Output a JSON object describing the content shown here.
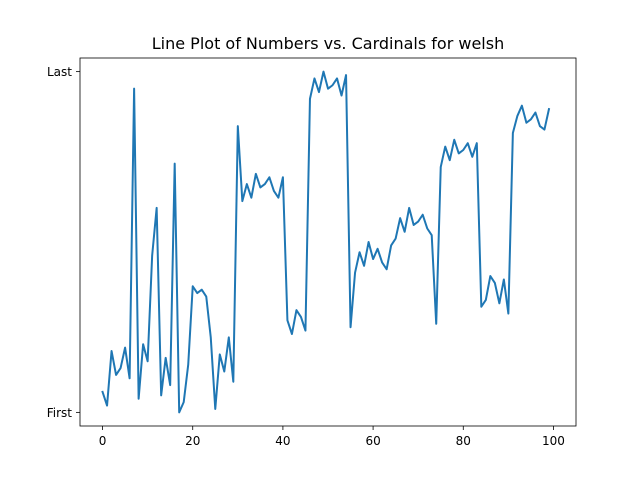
{
  "chart_data": {
    "type": "line",
    "title": "Line Plot of Numbers vs. Cardinals for welsh",
    "xlabel": "",
    "ylabel": "",
    "xlim": [
      -5,
      105
    ],
    "ylim": [
      -0.04,
      1.04
    ],
    "x_ticks": [
      0,
      20,
      40,
      60,
      80,
      100
    ],
    "y_ticks": [
      {
        "value": 0,
        "label": "First"
      },
      {
        "value": 1,
        "label": "Last"
      }
    ],
    "grid": false,
    "legend": "none",
    "line_color": "#1f77b4",
    "series": [
      {
        "x": [
          0,
          1,
          2,
          3,
          4,
          5,
          6,
          7,
          8,
          9,
          10,
          11,
          12,
          13,
          14,
          15,
          16,
          17,
          18,
          19,
          20,
          21,
          22,
          23,
          24,
          25,
          26,
          27,
          28,
          29,
          30,
          31,
          32,
          33,
          34,
          35,
          36,
          37,
          38,
          39,
          40,
          41,
          42,
          43,
          44,
          45,
          46,
          47,
          48,
          49,
          50,
          51,
          52,
          53,
          54,
          55,
          56,
          57,
          58,
          59,
          60,
          61,
          62,
          63,
          64,
          65,
          66,
          67,
          68,
          69,
          70,
          71,
          72,
          73,
          74,
          75,
          76,
          77,
          78,
          79,
          80,
          81,
          82,
          83,
          84,
          85,
          86,
          87,
          88,
          89,
          90,
          91,
          92,
          93,
          94,
          95,
          96,
          97,
          98,
          99
        ],
        "values": [
          0.06,
          0.02,
          0.18,
          0.11,
          0.13,
          0.19,
          0.1,
          0.95,
          0.04,
          0.2,
          0.15,
          0.46,
          0.6,
          0.05,
          0.16,
          0.08,
          0.73,
          0.0,
          0.03,
          0.14,
          0.37,
          0.35,
          0.36,
          0.34,
          0.22,
          0.01,
          0.17,
          0.12,
          0.22,
          0.09,
          0.84,
          0.62,
          0.67,
          0.63,
          0.7,
          0.66,
          0.67,
          0.69,
          0.65,
          0.63,
          0.69,
          0.27,
          0.23,
          0.3,
          0.28,
          0.24,
          0.92,
          0.98,
          0.94,
          1.0,
          0.95,
          0.96,
          0.98,
          0.93,
          0.99,
          0.25,
          0.41,
          0.47,
          0.43,
          0.5,
          0.45,
          0.48,
          0.44,
          0.42,
          0.49,
          0.51,
          0.57,
          0.53,
          0.6,
          0.55,
          0.56,
          0.58,
          0.54,
          0.52,
          0.26,
          0.72,
          0.78,
          0.74,
          0.8,
          0.76,
          0.77,
          0.79,
          0.75,
          0.79,
          0.31,
          0.33,
          0.4,
          0.38,
          0.32,
          0.39,
          0.29,
          0.82,
          0.87,
          0.9,
          0.85,
          0.86,
          0.88,
          0.84,
          0.83,
          0.89
        ]
      }
    ]
  }
}
